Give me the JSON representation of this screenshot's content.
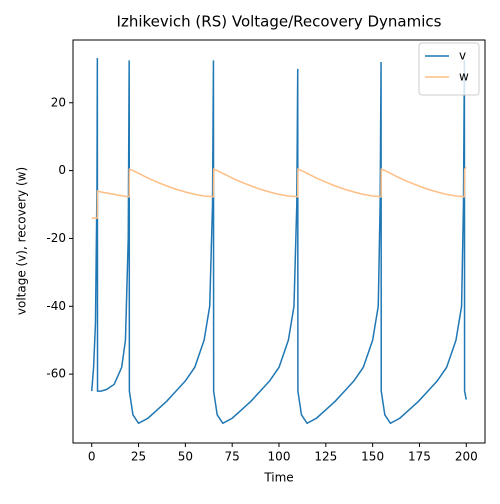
{
  "chart_data": {
    "type": "line",
    "title": "Izhikevich (RS) Voltage/Recovery Dynamics",
    "xlabel": "Time",
    "ylabel": "voltage (v), recovery (w)",
    "x": [
      0,
      1,
      2,
      2.8,
      3,
      3.1,
      5,
      8,
      12,
      16,
      18,
      19.5,
      20,
      20.1,
      22,
      25,
      30,
      35,
      40,
      45,
      50,
      55,
      60,
      63,
      64.5,
      65,
      65.1,
      67,
      70,
      75,
      80,
      85,
      90,
      95,
      100,
      105,
      108,
      109.5,
      110,
      110.1,
      112,
      115,
      120,
      125,
      130,
      135,
      140,
      145,
      150,
      153,
      154,
      154.5,
      154.6,
      156.5,
      159.5,
      164.5,
      169.5,
      174.5,
      179.5,
      184.5,
      189.5,
      194.5,
      197.5,
      198.5,
      199,
      199.1,
      200
    ],
    "series": [
      {
        "name": "v",
        "color": "#1f77b4",
        "values": [
          -65,
          -58,
          -45,
          -5,
          33.2,
          -65,
          -65,
          -64.5,
          -63,
          -58,
          -50,
          -20,
          32.5,
          -65,
          -72,
          -74.5,
          -73,
          -70.5,
          -68,
          -65,
          -62,
          -58,
          -50,
          -40,
          -10,
          32.5,
          -65,
          -72,
          -74.5,
          -73,
          -70.5,
          -68,
          -65,
          -62,
          -58,
          -50,
          -40,
          -10,
          30,
          -65,
          -72,
          -74.5,
          -73,
          -70.5,
          -68,
          -65,
          -62,
          -58,
          -50,
          -40,
          -10,
          32,
          -65,
          -72,
          -74.5,
          -73,
          -70.5,
          -68,
          -65,
          -62,
          -58,
          -50,
          -40,
          -10,
          32.5,
          -65,
          -67.5
        ]
      },
      {
        "name": "w",
        "color": "#ffbf86",
        "values": [
          -14,
          -14,
          -14,
          -14,
          -14,
          -6,
          -6.3,
          -6.6,
          -7,
          -7.4,
          -7.6,
          -7.7,
          -7.7,
          0.4,
          0,
          -0.8,
          -2.2,
          -3.4,
          -4.5,
          -5.5,
          -6.3,
          -7,
          -7.5,
          -7.6,
          -7.7,
          -7.7,
          0.4,
          0,
          -0.8,
          -2.2,
          -3.4,
          -4.5,
          -5.5,
          -6.3,
          -7,
          -7.5,
          -7.6,
          -7.7,
          -7.7,
          0.4,
          0,
          -0.8,
          -2.2,
          -3.4,
          -4.5,
          -5.5,
          -6.3,
          -7,
          -7.5,
          -7.6,
          -7.7,
          -7.7,
          0.4,
          0,
          -0.8,
          -2.2,
          -3.4,
          -4.5,
          -5.5,
          -6.3,
          -7,
          -7.5,
          -7.6,
          -7.7,
          -7.7,
          0.4,
          1
        ]
      }
    ],
    "xlim": [
      -10,
      210
    ],
    "xticks": [
      0,
      25,
      50,
      75,
      100,
      125,
      150,
      175,
      200
    ],
    "ylim": [
      -80.3,
      38.5
    ],
    "yticks": [
      -60,
      -40,
      -20,
      0,
      20
    ],
    "grid": false,
    "legend": "upper right"
  }
}
